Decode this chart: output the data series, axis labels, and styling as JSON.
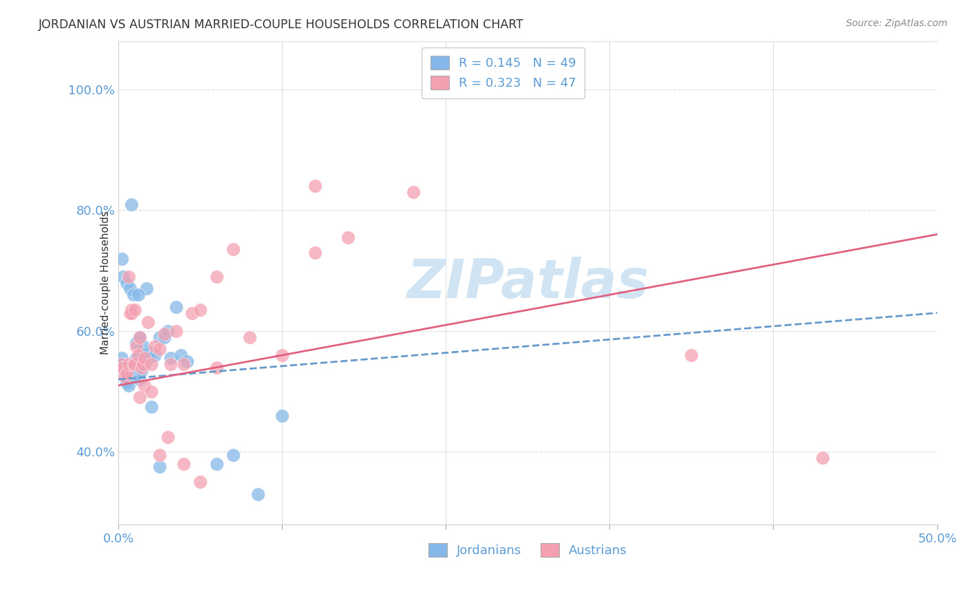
{
  "title": "JORDANIAN VS AUSTRIAN MARRIED-COUPLE HOUSEHOLDS CORRELATION CHART",
  "source": "Source: ZipAtlas.com",
  "ylabel": "Married-couple Households",
  "watermark": "ZIPatlas",
  "R_jordanian": 0.145,
  "N_jordanian": 49,
  "R_austrian": 0.323,
  "N_austrian": 47,
  "color_jordanian": "#85B8E8",
  "color_austrian": "#F4A0B0",
  "color_trendline_jordanian": "#6699CC",
  "color_trendline_austrian": "#E06080",
  "color_axis_text": "#5B9BD5",
  "color_title": "#333333",
  "color_source": "#888888",
  "color_watermark": "#D0E4F4",
  "xlim": [
    0.0,
    0.5
  ],
  "ylim": [
    0.28,
    1.08
  ],
  "yaxis_ticks": [
    0.4,
    0.6,
    0.8,
    1.0
  ],
  "yaxis_labels": [
    "40.0%",
    "60.0%",
    "80.0%",
    "100.0%"
  ],
  "jordanians_x": [
    0.001,
    0.002,
    0.002,
    0.003,
    0.003,
    0.004,
    0.004,
    0.005,
    0.005,
    0.006,
    0.007,
    0.008,
    0.008,
    0.009,
    0.01,
    0.01,
    0.011,
    0.012,
    0.013,
    0.014,
    0.015,
    0.016,
    0.018,
    0.02,
    0.022,
    0.025,
    0.028,
    0.03,
    0.032,
    0.035,
    0.038,
    0.042,
    0.002,
    0.003,
    0.005,
    0.007,
    0.009,
    0.011,
    0.013,
    0.015,
    0.017,
    0.02,
    0.025,
    0.008,
    0.012,
    0.06,
    0.07,
    0.085,
    0.1
  ],
  "jordanians_y": [
    0.53,
    0.545,
    0.555,
    0.54,
    0.535,
    0.53,
    0.525,
    0.52,
    0.515,
    0.51,
    0.545,
    0.535,
    0.53,
    0.525,
    0.54,
    0.55,
    0.555,
    0.545,
    0.52,
    0.535,
    0.56,
    0.545,
    0.555,
    0.565,
    0.56,
    0.59,
    0.59,
    0.6,
    0.555,
    0.64,
    0.56,
    0.55,
    0.72,
    0.69,
    0.68,
    0.67,
    0.66,
    0.58,
    0.59,
    0.575,
    0.67,
    0.475,
    0.375,
    0.81,
    0.66,
    0.38,
    0.395,
    0.33,
    0.46
  ],
  "austrians_x": [
    0.001,
    0.002,
    0.003,
    0.004,
    0.005,
    0.006,
    0.007,
    0.008,
    0.009,
    0.01,
    0.011,
    0.012,
    0.013,
    0.014,
    0.015,
    0.016,
    0.018,
    0.02,
    0.022,
    0.025,
    0.028,
    0.032,
    0.035,
    0.04,
    0.045,
    0.05,
    0.06,
    0.07,
    0.08,
    0.1,
    0.12,
    0.14,
    0.006,
    0.008,
    0.01,
    0.013,
    0.016,
    0.02,
    0.025,
    0.03,
    0.04,
    0.05,
    0.06,
    0.12,
    0.18,
    0.43,
    0.35
  ],
  "austrians_y": [
    0.53,
    0.545,
    0.54,
    0.525,
    0.53,
    0.545,
    0.63,
    0.635,
    0.545,
    0.545,
    0.575,
    0.56,
    0.59,
    0.54,
    0.545,
    0.555,
    0.615,
    0.545,
    0.575,
    0.57,
    0.595,
    0.545,
    0.6,
    0.545,
    0.63,
    0.635,
    0.69,
    0.735,
    0.59,
    0.56,
    0.73,
    0.755,
    0.69,
    0.63,
    0.635,
    0.49,
    0.51,
    0.5,
    0.395,
    0.425,
    0.38,
    0.35,
    0.54,
    0.84,
    0.83,
    0.39,
    0.56
  ]
}
